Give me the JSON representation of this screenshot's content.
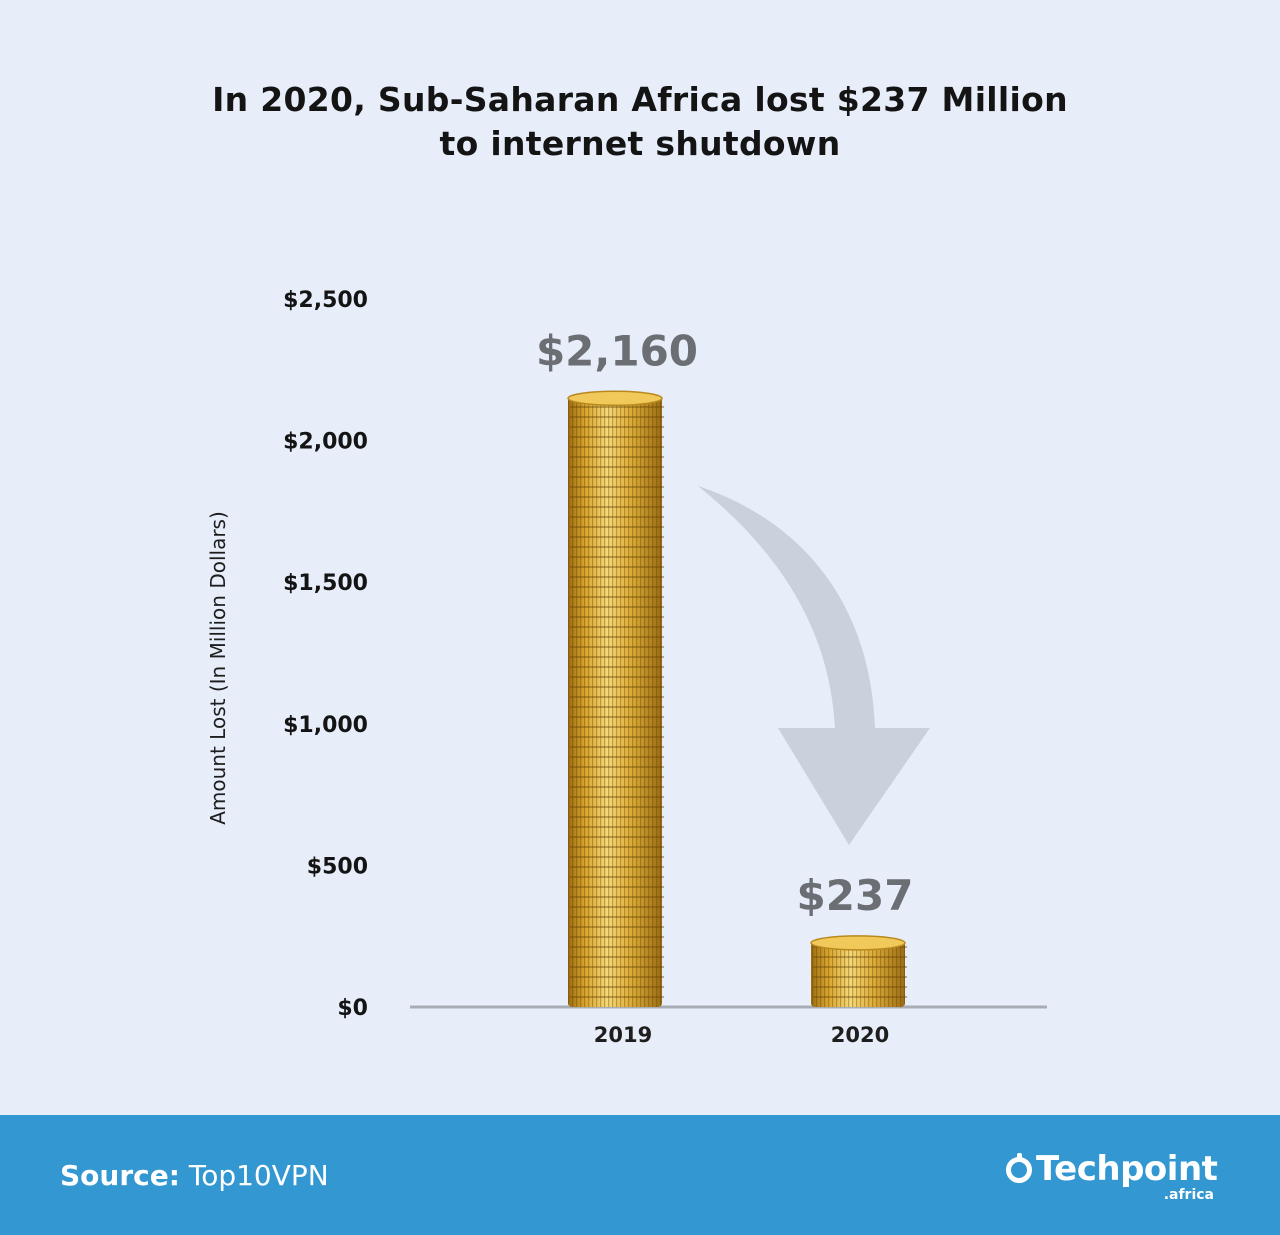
{
  "title": {
    "line1": "In 2020, Sub-Saharan Africa lost $237 Million",
    "line2": "to internet shutdown"
  },
  "chart_data": {
    "type": "bar",
    "categories": [
      "2019",
      "2020"
    ],
    "values": [
      2160,
      237
    ],
    "value_labels": [
      "$2,160",
      "$237"
    ],
    "ylabel": "Amount Lost (In Million Dollars)",
    "ylim": [
      0,
      2500
    ],
    "y_ticks": [
      {
        "value": 0,
        "label": "$0"
      },
      {
        "value": 500,
        "label": "$500"
      },
      {
        "value": 1000,
        "label": "$1,000"
      },
      {
        "value": 1500,
        "label": "$1,500"
      },
      {
        "value": 2000,
        "label": "$2,000"
      },
      {
        "value": 2500,
        "label": "$2,500"
      }
    ],
    "grid": false,
    "bar_style": "gold-coin-stack",
    "annotation": "downward-arrow",
    "colors": {
      "coin": "#d9a52c",
      "coin_light": "#f5d878",
      "coin_dark": "#9c6d12",
      "value_label": "#6b6e73",
      "arrow": "#c9d1dd",
      "axis": "#a8adb5"
    }
  },
  "footer": {
    "source_label": "Source:",
    "source_value": "Top10VPN",
    "background": "#3397d1",
    "logo_text": "Techpoint",
    "logo_sub": ".africa"
  }
}
